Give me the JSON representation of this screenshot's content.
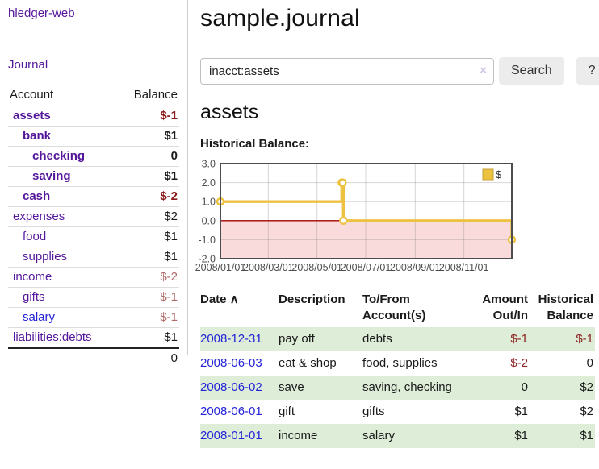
{
  "app": {
    "title": "hledger-web",
    "nav_journal": "Journal"
  },
  "colors": {
    "link_purple": "#54169b",
    "link_blue": "#2323d8",
    "negative_strong": "#8b1a1a",
    "negative_soft": "#b06a6a",
    "row_green": "#deedd8",
    "chart_line": "#EDC240",
    "chart_negative_region": "#fadbdb",
    "chart_zero_line": "#a00000",
    "button_bg": "#ececec"
  },
  "sidebar": {
    "header": {
      "account": "Account",
      "balance": "Balance"
    },
    "accounts": [
      {
        "name": "assets",
        "balance": "$-1"
      },
      {
        "name": "bank",
        "balance": "$1"
      },
      {
        "name": "checking",
        "balance": "0"
      },
      {
        "name": "saving",
        "balance": "$1"
      },
      {
        "name": "cash",
        "balance": "$-2"
      },
      {
        "name": "expenses",
        "balance": "$2"
      },
      {
        "name": "food",
        "balance": "$1"
      },
      {
        "name": "supplies",
        "balance": "$1"
      },
      {
        "name": "income",
        "balance": "$-2"
      },
      {
        "name": "gifts",
        "balance": "$-1"
      },
      {
        "name": "salary",
        "balance": "$-1"
      },
      {
        "name": "liabilities:debts",
        "balance": "$1"
      }
    ],
    "total": "0"
  },
  "main": {
    "title": "sample.journal",
    "search": {
      "value": "inacct:assets",
      "clear_icon": "×",
      "button_label": "Search",
      "help_label": "?"
    },
    "account_heading": "assets",
    "chart_label": "Historical Balance:"
  },
  "chart_data": {
    "type": "line",
    "title": "Historical Balance",
    "step": true,
    "legend": [
      "$"
    ],
    "legend_position": "top-right",
    "x_range": [
      "2008-01-01",
      "2008-12-31"
    ],
    "ylim": [
      -2.0,
      3.0
    ],
    "yticks": [
      3.0,
      2.0,
      1.0,
      0.0,
      -1.0,
      -2.0
    ],
    "xticks": [
      {
        "date": "2008-01-01",
        "label": "2008/01/01"
      },
      {
        "date": "2008-03-01",
        "label": "2008/03/01"
      },
      {
        "date": "2008-05-01",
        "label": "2008/05/01"
      },
      {
        "date": "2008-07-01",
        "label": "2008/07/01"
      },
      {
        "date": "2008-09-01",
        "label": "2008/09/01"
      },
      {
        "date": "2008-11-01",
        "label": "2008/11/01"
      }
    ],
    "negative_region_below": 0,
    "series": [
      {
        "name": "$",
        "points": [
          {
            "date": "2008-01-01",
            "value": 1
          },
          {
            "date": "2008-06-01",
            "value": 2
          },
          {
            "date": "2008-06-02",
            "value": 2
          },
          {
            "date": "2008-06-03",
            "value": 0
          },
          {
            "date": "2008-12-31",
            "value": -1
          }
        ]
      }
    ]
  },
  "register": {
    "headers": {
      "date": "Date",
      "sort_icon": "∧",
      "description": "Description",
      "tofrom": "To/From Account(s)",
      "amount": "Amount Out/In",
      "balance": "Historical Balance"
    },
    "rows": [
      {
        "date": "2008-12-31",
        "description": "pay off",
        "tofrom": "debts",
        "amount": "$-1",
        "balance": "$-1"
      },
      {
        "date": "2008-06-03",
        "description": "eat & shop",
        "tofrom": "food, supplies",
        "amount": "$-2",
        "balance": "0"
      },
      {
        "date": "2008-06-02",
        "description": "save",
        "tofrom": "saving, checking",
        "amount": "0",
        "balance": "$2"
      },
      {
        "date": "2008-06-01",
        "description": "gift",
        "tofrom": "gifts",
        "amount": "$1",
        "balance": "$2"
      },
      {
        "date": "2008-01-01",
        "description": "income",
        "tofrom": "salary",
        "amount": "$1",
        "balance": "$1"
      }
    ]
  }
}
